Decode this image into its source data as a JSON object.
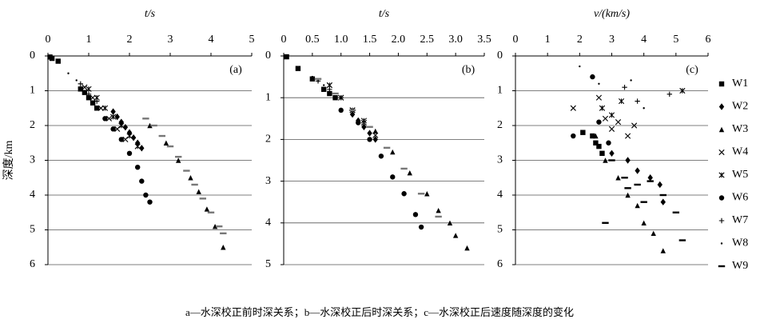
{
  "chart_data": [
    {
      "type": "scatter",
      "panel_label": "(a)",
      "x_label": "t/s",
      "y_label": "深度/km",
      "xlim": [
        0,
        5
      ],
      "xticks": [
        0,
        1,
        2,
        3,
        4,
        5
      ],
      "ylim": [
        0,
        6
      ],
      "yticks": [
        0,
        1,
        2,
        3,
        4,
        5,
        6
      ],
      "y_inverted": true,
      "grid": true,
      "series": [
        {
          "marker": "square",
          "color": "#000000",
          "x": [
            0.05,
            0.1,
            0.25,
            0.8,
            0.9,
            1.0,
            1.1,
            1.2
          ],
          "values": [
            0.03,
            0.07,
            0.15,
            0.95,
            1.05,
            1.2,
            1.35,
            1.5
          ]
        },
        {
          "marker": "diamond",
          "color": "#000000",
          "x": [
            1.6,
            1.7,
            1.8,
            1.9,
            2.0,
            2.1,
            2.2,
            2.3
          ],
          "values": [
            1.6,
            1.75,
            1.9,
            2.05,
            2.2,
            2.35,
            2.5,
            2.65
          ]
        },
        {
          "marker": "triangle",
          "color": "#000000",
          "x": [
            2.5,
            2.9,
            3.2,
            3.5,
            3.7,
            3.9,
            4.1,
            4.3
          ],
          "values": [
            2.0,
            2.5,
            3.0,
            3.5,
            3.9,
            4.4,
            4.9,
            5.5
          ]
        },
        {
          "marker": "cross",
          "color": "#000000",
          "x": [
            0.9,
            1.1,
            1.3,
            1.5,
            1.7,
            1.9
          ],
          "values": [
            0.9,
            1.2,
            1.5,
            1.8,
            2.1,
            2.4
          ]
        },
        {
          "marker": "star",
          "color": "#000000",
          "x": [
            1.0,
            1.2,
            1.4,
            1.6,
            1.8,
            2.0,
            2.2
          ],
          "values": [
            0.95,
            1.2,
            1.5,
            1.75,
            2.0,
            2.3,
            2.6
          ]
        },
        {
          "marker": "circle",
          "color": "#000000",
          "x": [
            1.4,
            1.6,
            1.8,
            2.0,
            2.2,
            2.3,
            2.4,
            2.5
          ],
          "values": [
            1.8,
            2.1,
            2.4,
            2.8,
            3.2,
            3.6,
            4.0,
            4.2
          ]
        },
        {
          "marker": "plus",
          "color": "#000000",
          "x": [
            0.8,
            1.0,
            1.2
          ],
          "values": [
            0.8,
            1.1,
            1.3
          ]
        },
        {
          "marker": "dot",
          "color": "#000000",
          "x": [
            0.5,
            0.7,
            0.9
          ],
          "values": [
            0.5,
            0.7,
            0.9
          ]
        },
        {
          "marker": "dash",
          "color": "#777777",
          "x": [
            2.4,
            2.6,
            2.8,
            3.0,
            3.2,
            3.4,
            3.6,
            3.8,
            4.0,
            4.2,
            4.3
          ],
          "values": [
            1.8,
            2.0,
            2.3,
            2.6,
            2.9,
            3.3,
            3.7,
            4.1,
            4.5,
            4.9,
            5.1
          ]
        }
      ]
    },
    {
      "type": "scatter",
      "panel_label": "(b)",
      "x_label": "t/s",
      "xlim": [
        0,
        3.5
      ],
      "xticks": [
        0,
        0.5,
        {
          "value": 1,
          "label": "1.0"
        },
        1.5,
        {
          "value": 2,
          "label": "2.0"
        },
        2.5,
        {
          "value": 3,
          "label": "3.0"
        },
        3.5
      ],
      "ylim": [
        0,
        5
      ],
      "yticks": [
        0,
        1,
        2,
        3,
        4,
        5
      ],
      "y_inverted": true,
      "grid": true,
      "series": [
        {
          "marker": "square",
          "color": "#000000",
          "x": [
            0.05,
            0.25,
            0.5,
            0.7,
            0.8,
            0.9
          ],
          "values": [
            0.02,
            0.3,
            0.55,
            0.8,
            0.9,
            1.0
          ]
        },
        {
          "marker": "diamond",
          "color": "#000000",
          "x": [
            1.2,
            1.3,
            1.4,
            1.5,
            1.6
          ],
          "values": [
            1.4,
            1.55,
            1.7,
            1.85,
            2.0
          ]
        },
        {
          "marker": "triangle",
          "color": "#000000",
          "x": [
            1.6,
            1.9,
            2.2,
            2.5,
            2.7,
            2.9,
            3.0,
            3.2
          ],
          "values": [
            1.8,
            2.3,
            2.8,
            3.3,
            3.7,
            4.0,
            4.3,
            4.6
          ]
        },
        {
          "marker": "cross",
          "color": "#000000",
          "x": [
            0.8,
            1.0,
            1.2,
            1.4,
            1.6
          ],
          "values": [
            0.7,
            1.0,
            1.3,
            1.6,
            1.9
          ]
        },
        {
          "marker": "star",
          "color": "#000000",
          "x": [
            0.8,
            1.0,
            1.2,
            1.4
          ],
          "values": [
            0.7,
            1.0,
            1.3,
            1.55
          ]
        },
        {
          "marker": "circle",
          "color": "#000000",
          "x": [
            1.0,
            1.3,
            1.5,
            1.7,
            1.9,
            2.1,
            2.3,
            2.4
          ],
          "values": [
            1.3,
            1.6,
            2.0,
            2.4,
            2.9,
            3.3,
            3.8,
            4.1
          ]
        },
        {
          "marker": "plus",
          "color": "#000000",
          "x": [
            0.6,
            0.8,
            1.0
          ],
          "values": [
            0.6,
            0.8,
            1.0
          ]
        },
        {
          "marker": "dot",
          "color": "#000000",
          "x": [
            0.5,
            0.6,
            0.7
          ],
          "values": [
            0.5,
            0.6,
            0.7
          ]
        },
        {
          "marker": "dash",
          "color": "#777777",
          "x": [
            0.6,
            0.9,
            1.2,
            1.5,
            1.8,
            2.1,
            2.4,
            2.7
          ],
          "values": [
            0.55,
            0.9,
            1.3,
            1.7,
            2.2,
            2.7,
            3.3,
            3.85
          ]
        }
      ]
    },
    {
      "type": "scatter",
      "panel_label": "(c)",
      "x_label": "v/(km/s)",
      "xlim": [
        0,
        6
      ],
      "xticks": [
        0,
        1,
        2,
        3,
        4,
        5,
        6
      ],
      "ylim": [
        0,
        6
      ],
      "yticks": [
        0,
        1,
        2,
        3,
        4,
        5,
        6
      ],
      "y_inverted": true,
      "grid": true,
      "series": [
        {
          "name": "W1",
          "marker": "square",
          "color": "#000000",
          "x": [
            2.1,
            2.4,
            2.5,
            2.6,
            2.7
          ],
          "values": [
            2.2,
            2.3,
            2.5,
            2.6,
            2.8
          ]
        },
        {
          "name": "W2",
          "marker": "diamond",
          "color": "#000000",
          "x": [
            3.0,
            3.5,
            3.8,
            4.2,
            4.5,
            4.6
          ],
          "values": [
            2.8,
            3.0,
            3.3,
            3.5,
            3.7,
            4.2
          ]
        },
        {
          "name": "W3",
          "marker": "triangle",
          "color": "#000000",
          "x": [
            2.5,
            2.8,
            3.2,
            3.5,
            3.8,
            4.0,
            4.3,
            4.6
          ],
          "values": [
            2.3,
            3.0,
            3.5,
            4.0,
            4.3,
            4.8,
            5.1,
            5.6
          ]
        },
        {
          "name": "W4",
          "marker": "cross",
          "color": "#000000",
          "x": [
            1.8,
            2.6,
            2.8,
            3.0,
            3.2,
            3.5,
            3.7
          ],
          "values": [
            1.5,
            1.2,
            1.8,
            2.1,
            1.9,
            2.3,
            2.0
          ]
        },
        {
          "name": "W5",
          "marker": "star",
          "color": "#000000",
          "x": [
            2.7,
            3.0,
            3.3,
            5.2
          ],
          "values": [
            1.5,
            1.7,
            1.3,
            1.0
          ]
        },
        {
          "name": "W6",
          "marker": "circle",
          "color": "#000000",
          "x": [
            1.8,
            2.4,
            2.6,
            2.9
          ],
          "values": [
            2.3,
            0.6,
            1.9,
            2.5
          ]
        },
        {
          "name": "W7",
          "marker": "plus",
          "color": "#000000",
          "x": [
            3.4,
            3.8,
            4.8
          ],
          "values": [
            0.9,
            1.3,
            1.1
          ]
        },
        {
          "name": "W8",
          "marker": "dot",
          "color": "#000000",
          "x": [
            2.0,
            2.6,
            3.6,
            4.0
          ],
          "values": [
            0.3,
            0.8,
            0.7,
            1.5
          ]
        },
        {
          "name": "W9",
          "marker": "dash",
          "color": "#000000",
          "x": [
            3.0,
            3.4,
            3.8,
            4.2,
            4.6,
            5.0,
            3.5,
            4.0,
            2.8,
            5.2
          ],
          "values": [
            3.0,
            3.5,
            3.7,
            3.6,
            4.0,
            4.5,
            3.8,
            4.2,
            4.8,
            5.3
          ]
        }
      ]
    }
  ],
  "caption": "a—水深校正前时深关系；b—水深校正后时深关系；c—水深校正后速度随深度的变化"
}
